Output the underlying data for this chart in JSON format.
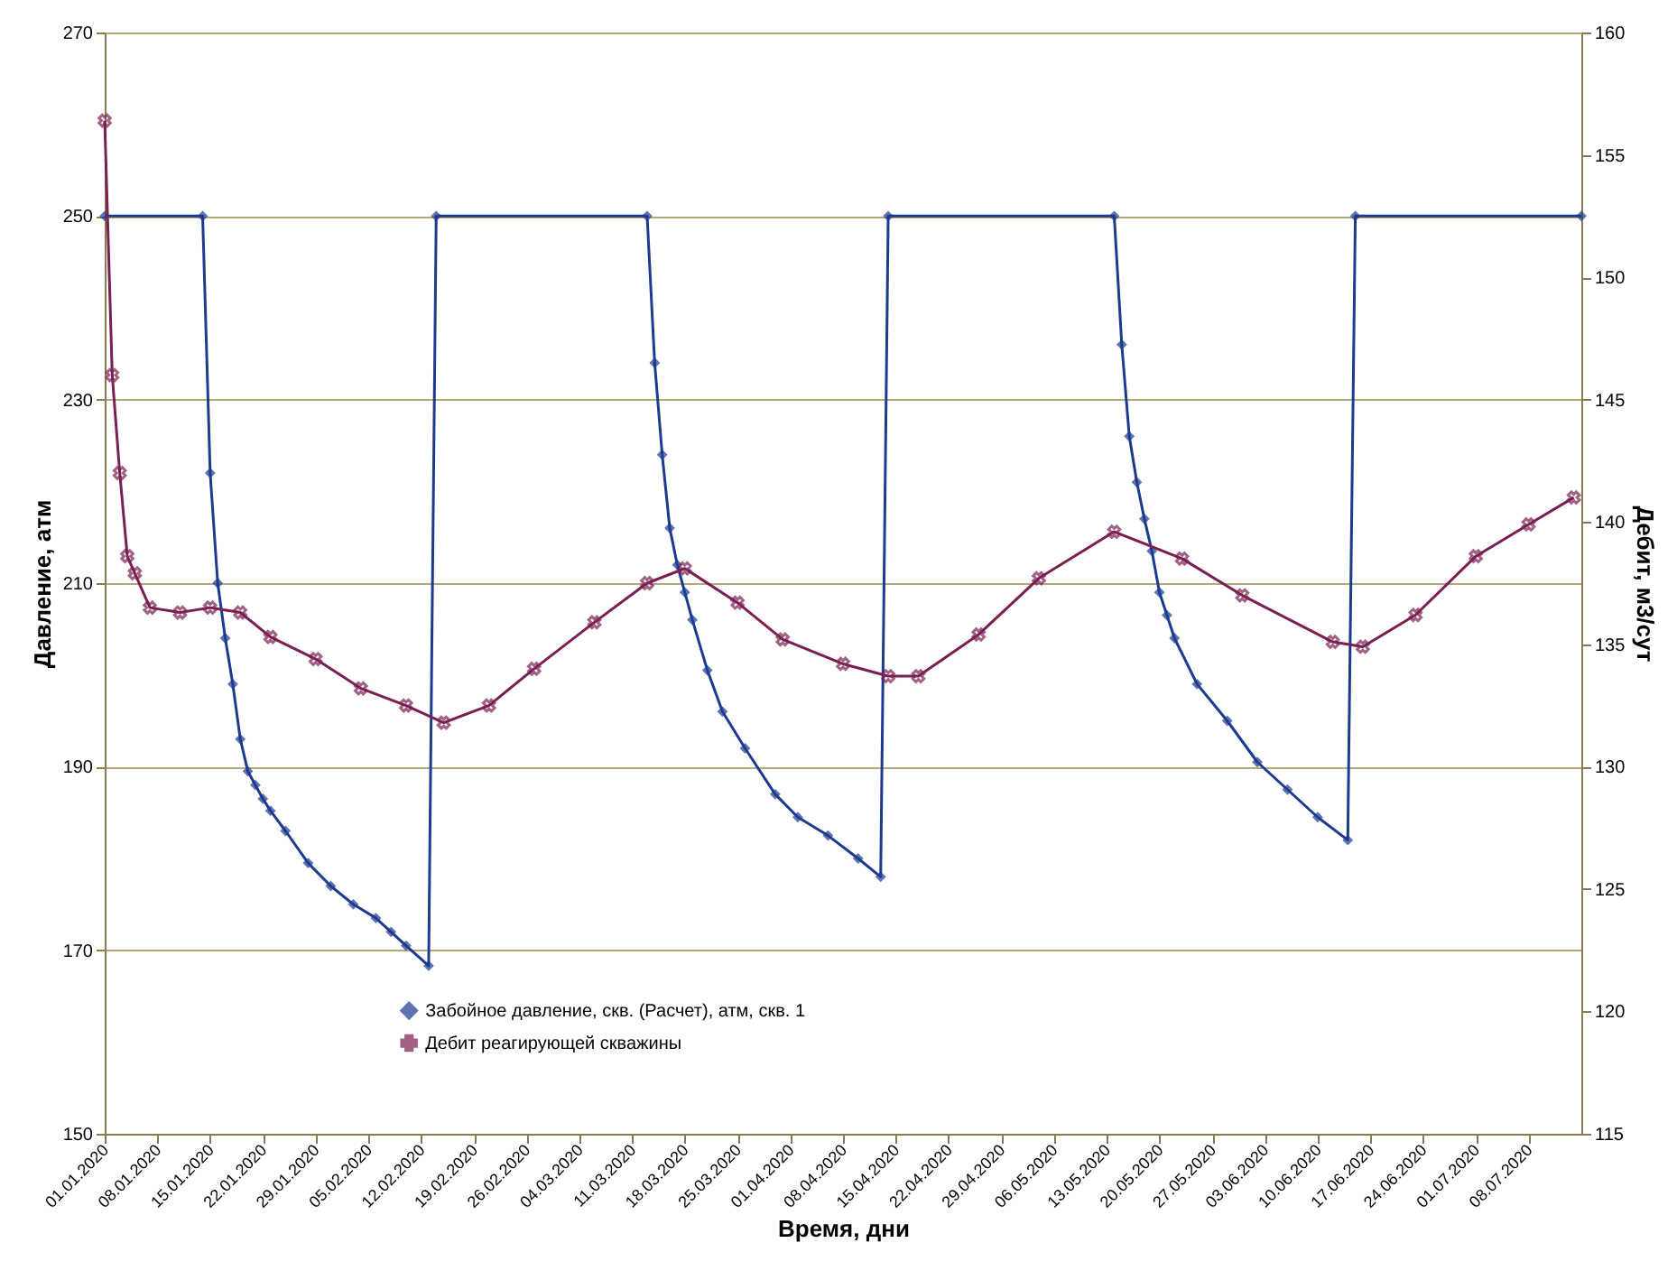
{
  "chart_data": {
    "type": "line",
    "xlabel": "Время, дни",
    "ylabel": "Давление, атм",
    "y2label": "Дебит, м3/сут",
    "xlim": [
      "2020-01-01",
      "2020-07-15"
    ],
    "xticks": [
      {
        "value": "2020-01-01",
        "label": "01.01.2020"
      },
      {
        "value": "2020-01-08",
        "label": "08.01.2020"
      },
      {
        "value": "2020-01-15",
        "label": "15.01.2020"
      },
      {
        "value": "2020-01-22",
        "label": "22.01.2020"
      },
      {
        "value": "2020-01-29",
        "label": "29.01.2020"
      },
      {
        "value": "2020-02-05",
        "label": "05.02.2020"
      },
      {
        "value": "2020-02-12",
        "label": "12.02.2020"
      },
      {
        "value": "2020-02-19",
        "label": "19.02.2020"
      },
      {
        "value": "2020-02-26",
        "label": "26.02.2020"
      },
      {
        "value": "2020-03-04",
        "label": "04.03.2020"
      },
      {
        "value": "2020-03-11",
        "label": "11.03.2020"
      },
      {
        "value": "2020-03-18",
        "label": "18.03.2020"
      },
      {
        "value": "2020-03-25",
        "label": "25.03.2020"
      },
      {
        "value": "2020-04-01",
        "label": "01.04.2020"
      },
      {
        "value": "2020-04-08",
        "label": "08.04.2020"
      },
      {
        "value": "2020-04-15",
        "label": "15.04.2020"
      },
      {
        "value": "2020-04-22",
        "label": "22.04.2020"
      },
      {
        "value": "2020-04-29",
        "label": "29.04.2020"
      },
      {
        "value": "2020-05-06",
        "label": "06.05.2020"
      },
      {
        "value": "2020-05-13",
        "label": "13.05.2020"
      },
      {
        "value": "2020-05-20",
        "label": "20.05.2020"
      },
      {
        "value": "2020-05-27",
        "label": "27.05.2020"
      },
      {
        "value": "2020-06-03",
        "label": "03.06.2020"
      },
      {
        "value": "2020-06-10",
        "label": "10.06.2020"
      },
      {
        "value": "2020-06-17",
        "label": "17.06.2020"
      },
      {
        "value": "2020-06-24",
        "label": "24.06.2020"
      },
      {
        "value": "2020-07-01",
        "label": "01.07.2020"
      },
      {
        "value": "2020-07-08",
        "label": "08.07.2020"
      }
    ],
    "ylim": [
      150,
      270
    ],
    "yticks": [
      150,
      170,
      190,
      210,
      230,
      250,
      270
    ],
    "y2lim": [
      115,
      160
    ],
    "y2ticks": [
      115,
      120,
      125,
      130,
      135,
      140,
      145,
      150,
      155,
      160
    ],
    "grid": "y",
    "legend": "bottom left",
    "line_style": "solid",
    "series": [
      {
        "name": "Забойное давление, скв. (Расчет), атм, скв. 1",
        "color": "#1c3a8f",
        "marker": "diamond",
        "x": [
          "2020-01-01",
          "2020-01-14",
          "2020-01-15",
          "2020-01-16",
          "2020-01-17",
          "2020-01-18",
          "2020-01-19",
          "2020-01-20",
          "2020-01-21",
          "2020-01-22",
          "2020-01-23",
          "2020-01-25",
          "2020-01-28",
          "2020-01-31",
          "2020-02-03",
          "2020-02-06",
          "2020-02-08",
          "2020-02-10",
          "2020-02-13",
          "2020-02-14",
          "2020-03-13",
          "2020-03-14",
          "2020-03-15",
          "2020-03-16",
          "2020-03-17",
          "2020-03-18",
          "2020-03-19",
          "2020-03-21",
          "2020-03-23",
          "2020-03-26",
          "2020-03-30",
          "2020-04-02",
          "2020-04-06",
          "2020-04-10",
          "2020-04-13",
          "2020-04-14",
          "2020-05-14",
          "2020-05-15",
          "2020-05-16",
          "2020-05-17",
          "2020-05-18",
          "2020-05-19",
          "2020-05-20",
          "2020-05-21",
          "2020-05-22",
          "2020-05-25",
          "2020-05-29",
          "2020-06-02",
          "2020-06-06",
          "2020-06-10",
          "2020-06-14",
          "2020-06-15",
          "2020-07-15"
        ],
        "values": [
          250,
          250,
          222,
          210,
          204,
          199,
          193,
          189.5,
          188,
          186.5,
          185.2,
          183,
          179.5,
          177,
          175,
          173.5,
          172,
          170.5,
          168.3,
          250,
          250,
          234,
          224,
          216,
          212,
          209,
          206,
          200.5,
          196,
          192,
          187,
          184.5,
          182.5,
          180,
          178,
          250,
          250,
          236,
          226,
          221,
          217,
          213.5,
          209,
          206.5,
          204,
          199,
          195,
          190.5,
          187.5,
          184.5,
          182,
          250,
          250
        ]
      },
      {
        "name": "Дебит реагирующей скважины",
        "color": "#7a1f52",
        "marker": "cross",
        "axis": "y2",
        "x": [
          "2020-01-01",
          "2020-01-02",
          "2020-01-03",
          "2020-01-04",
          "2020-01-05",
          "2020-01-07",
          "2020-01-11",
          "2020-01-15",
          "2020-01-19",
          "2020-01-23",
          "2020-01-29",
          "2020-02-04",
          "2020-02-10",
          "2020-02-15",
          "2020-02-21",
          "2020-02-27",
          "2020-03-06",
          "2020-03-13",
          "2020-03-18",
          "2020-03-25",
          "2020-03-31",
          "2020-04-08",
          "2020-04-14",
          "2020-04-18",
          "2020-04-26",
          "2020-05-04",
          "2020-05-14",
          "2020-05-23",
          "2020-05-31",
          "2020-06-12",
          "2020-06-16",
          "2020-06-23",
          "2020-07-01",
          "2020-07-08",
          "2020-07-14"
        ],
        "values": [
          156.4,
          146,
          142,
          138.6,
          137.9,
          136.5,
          136.3,
          136.5,
          136.3,
          135.3,
          134.4,
          133.2,
          132.5,
          131.8,
          132.5,
          134,
          135.9,
          137.5,
          138.1,
          136.7,
          135.2,
          134.2,
          133.7,
          133.7,
          135.4,
          137.7,
          139.6,
          138.5,
          137,
          135.1,
          134.9,
          136.2,
          138.6,
          139.9,
          141
        ]
      }
    ]
  }
}
